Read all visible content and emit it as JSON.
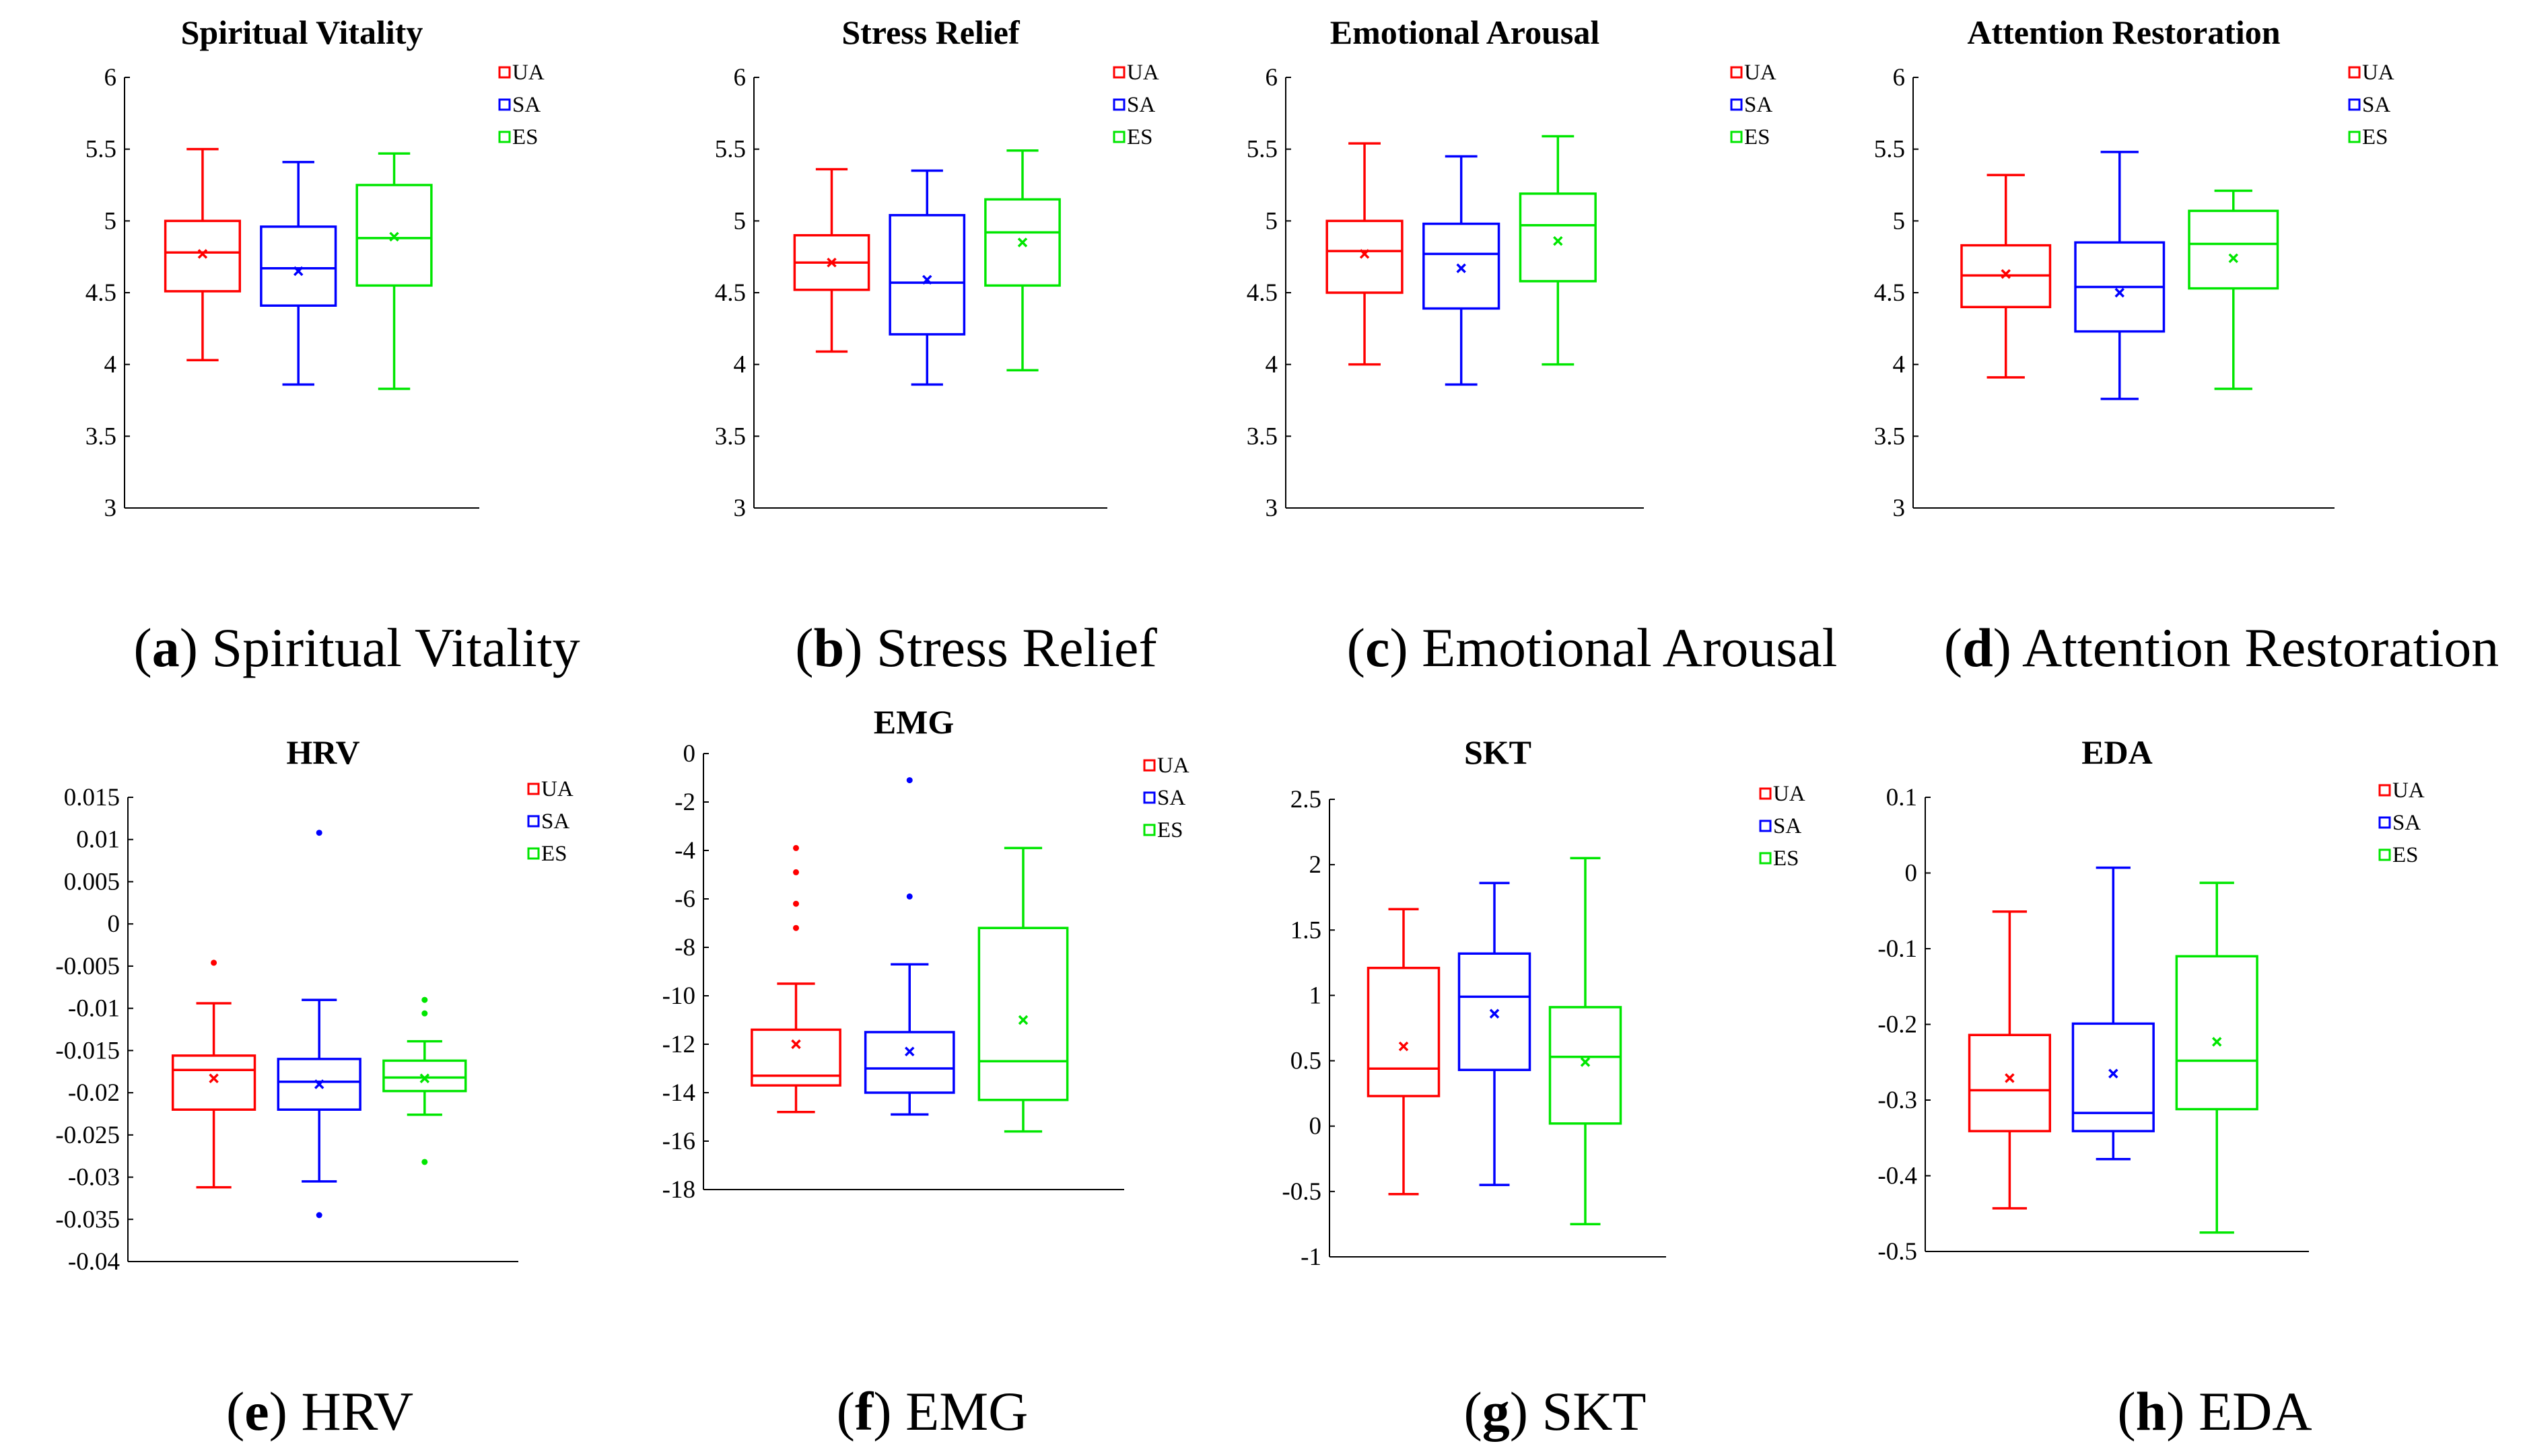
{
  "colors": {
    "UA": "#ff0000",
    "SA": "#0000ff",
    "ES": "#00e600"
  },
  "chart_data": [
    {
      "type": "boxplot",
      "title": "Spiritual Vitality",
      "caption_letter": "a",
      "caption_text": "Spiritual Vitality",
      "ylim": [
        3,
        6
      ],
      "yticks": [
        "3",
        "3.5",
        "4",
        "4.5",
        "5",
        "5.5",
        "6"
      ],
      "legend": [
        "UA",
        "SA",
        "ES"
      ],
      "legend_position": "top-right",
      "series": [
        {
          "name": "UA",
          "whisker_low": 4.03,
          "q1": 4.51,
          "median": 4.78,
          "q3": 5.0,
          "whisker_high": 5.5,
          "mean": 4.77,
          "outliers": []
        },
        {
          "name": "SA",
          "whisker_low": 3.86,
          "q1": 4.41,
          "median": 4.67,
          "q3": 4.96,
          "whisker_high": 5.41,
          "mean": 4.65,
          "outliers": []
        },
        {
          "name": "ES",
          "whisker_low": 3.83,
          "q1": 4.55,
          "median": 4.88,
          "q3": 5.25,
          "whisker_high": 5.47,
          "mean": 4.89,
          "outliers": []
        }
      ]
    },
    {
      "type": "boxplot",
      "title": "Stress Relief",
      "caption_letter": "b",
      "caption_text": "Stress Relief",
      "ylim": [
        3,
        6
      ],
      "yticks": [
        "3",
        "3.5",
        "4",
        "4.5",
        "5",
        "5.5",
        "6"
      ],
      "legend": [
        "UA",
        "SA",
        "ES"
      ],
      "legend_position": "top-right",
      "series": [
        {
          "name": "UA",
          "whisker_low": 4.09,
          "q1": 4.52,
          "median": 4.71,
          "q3": 4.9,
          "whisker_high": 5.36,
          "mean": 4.71,
          "outliers": []
        },
        {
          "name": "SA",
          "whisker_low": 3.86,
          "q1": 4.21,
          "median": 4.57,
          "q3": 5.04,
          "whisker_high": 5.35,
          "mean": 4.59,
          "outliers": []
        },
        {
          "name": "ES",
          "whisker_low": 3.96,
          "q1": 4.55,
          "median": 4.92,
          "q3": 5.15,
          "whisker_high": 5.49,
          "mean": 4.85,
          "outliers": []
        }
      ]
    },
    {
      "type": "boxplot",
      "title": "Emotional Arousal",
      "caption_letter": "c",
      "caption_text": "Emotional Arousal",
      "ylim": [
        3,
        6
      ],
      "yticks": [
        "3",
        "3.5",
        "4",
        "4.5",
        "5",
        "5.5",
        "6"
      ],
      "legend": [
        "UA",
        "SA",
        "ES"
      ],
      "legend_position": "top-right",
      "series": [
        {
          "name": "UA",
          "whisker_low": 4.0,
          "q1": 4.5,
          "median": 4.79,
          "q3": 5.0,
          "whisker_high": 5.54,
          "mean": 4.77,
          "outliers": []
        },
        {
          "name": "SA",
          "whisker_low": 3.86,
          "q1": 4.39,
          "median": 4.77,
          "q3": 4.98,
          "whisker_high": 5.45,
          "mean": 4.67,
          "outliers": []
        },
        {
          "name": "ES",
          "whisker_low": 4.0,
          "q1": 4.58,
          "median": 4.97,
          "q3": 5.19,
          "whisker_high": 5.59,
          "mean": 4.86,
          "outliers": []
        }
      ]
    },
    {
      "type": "boxplot",
      "title": "Attention Restoration",
      "caption_letter": "d",
      "caption_text": "Attention Restoration",
      "ylim": [
        3,
        6
      ],
      "yticks": [
        "3",
        "3.5",
        "4",
        "4.5",
        "5",
        "5.5",
        "6"
      ],
      "legend": [
        "UA",
        "SA",
        "ES"
      ],
      "legend_position": "top-right",
      "series": [
        {
          "name": "UA",
          "whisker_low": 3.91,
          "q1": 4.4,
          "median": 4.62,
          "q3": 4.83,
          "whisker_high": 5.32,
          "mean": 4.63,
          "outliers": []
        },
        {
          "name": "SA",
          "whisker_low": 3.76,
          "q1": 4.23,
          "median": 4.54,
          "q3": 4.85,
          "whisker_high": 5.48,
          "mean": 4.5,
          "outliers": []
        },
        {
          "name": "ES",
          "whisker_low": 3.83,
          "q1": 4.53,
          "median": 4.84,
          "q3": 5.07,
          "whisker_high": 5.21,
          "mean": 4.74,
          "outliers": []
        }
      ]
    },
    {
      "type": "boxplot",
      "title": "HRV",
      "caption_letter": "e",
      "caption_text": "HRV",
      "ylim": [
        -0.04,
        0.015
      ],
      "yticks": [
        "-0.04",
        "-0.035",
        "-0.03",
        "-0.025",
        "-0.02",
        "-0.015",
        "-0.01",
        "-0.005",
        "0",
        "0.005",
        "0.01",
        "0.015"
      ],
      "legend": [
        "UA",
        "SA",
        "ES"
      ],
      "legend_position": "top-right",
      "series": [
        {
          "name": "UA",
          "whisker_low": -0.0312,
          "q1": -0.022,
          "median": -0.0173,
          "q3": -0.0156,
          "whisker_high": -0.0094,
          "mean": -0.0183,
          "outliers": [
            -0.0046
          ]
        },
        {
          "name": "SA",
          "whisker_low": -0.0305,
          "q1": -0.022,
          "median": -0.0187,
          "q3": -0.016,
          "whisker_high": -0.009,
          "mean": -0.019,
          "outliers": [
            0.0108,
            -0.0345
          ]
        },
        {
          "name": "ES",
          "whisker_low": -0.0226,
          "q1": -0.0198,
          "median": -0.0182,
          "q3": -0.0162,
          "whisker_high": -0.0139,
          "mean": -0.0183,
          "outliers": [
            -0.009,
            -0.0106,
            -0.0282
          ]
        }
      ]
    },
    {
      "type": "boxplot",
      "title": "EMG",
      "caption_letter": "f",
      "caption_text": "EMG",
      "ylim": [
        -18,
        0
      ],
      "yticks": [
        "-18",
        "-16",
        "-14",
        "-12",
        "-10",
        "-8",
        "-6",
        "-4",
        "-2",
        "0"
      ],
      "legend": [
        "UA",
        "SA",
        "ES"
      ],
      "legend_position": "top-right",
      "series": [
        {
          "name": "UA",
          "whisker_low": -14.8,
          "q1": -13.7,
          "median": -13.3,
          "q3": -11.4,
          "whisker_high": -9.5,
          "mean": -12.0,
          "outliers": [
            -3.9,
            -4.9,
            -6.2,
            -7.2
          ]
        },
        {
          "name": "SA",
          "whisker_low": -14.9,
          "q1": -14.0,
          "median": -13.0,
          "q3": -11.5,
          "whisker_high": -8.7,
          "mean": -12.3,
          "outliers": [
            -1.1,
            -5.9
          ]
        },
        {
          "name": "ES",
          "whisker_low": -15.6,
          "q1": -14.3,
          "median": -12.7,
          "q3": -7.2,
          "whisker_high": -3.9,
          "mean": -11.0,
          "outliers": []
        }
      ]
    },
    {
      "type": "boxplot",
      "title": "SKT",
      "caption_letter": "g",
      "caption_text": "SKT",
      "ylim": [
        -1,
        2.5
      ],
      "yticks": [
        "-1",
        "-0.5",
        "0",
        "0.5",
        "1",
        "1.5",
        "2",
        "2.5"
      ],
      "legend": [
        "UA",
        "SA",
        "ES"
      ],
      "legend_position": "top-right",
      "series": [
        {
          "name": "UA",
          "whisker_low": -0.52,
          "q1": 0.23,
          "median": 0.44,
          "q3": 1.21,
          "whisker_high": 1.66,
          "mean": 0.61,
          "outliers": []
        },
        {
          "name": "SA",
          "whisker_low": -0.45,
          "q1": 0.43,
          "median": 0.99,
          "q3": 1.32,
          "whisker_high": 1.86,
          "mean": 0.86,
          "outliers": []
        },
        {
          "name": "ES",
          "whisker_low": -0.75,
          "q1": 0.02,
          "median": 0.53,
          "q3": 0.91,
          "whisker_high": 2.05,
          "mean": 0.49,
          "outliers": []
        }
      ]
    },
    {
      "type": "boxplot",
      "title": "EDA",
      "caption_letter": "h",
      "caption_text": "EDA",
      "ylim": [
        -0.5,
        0.1
      ],
      "yticks": [
        "-0.5",
        "-0.4",
        "-0.3",
        "-0.2",
        "-0.1",
        "0",
        "0.1"
      ],
      "legend": [
        "UA",
        "SA",
        "ES"
      ],
      "legend_position": "top-right",
      "series": [
        {
          "name": "UA",
          "whisker_low": -0.443,
          "q1": -0.341,
          "median": -0.287,
          "q3": -0.214,
          "whisker_high": -0.051,
          "mean": -0.271,
          "outliers": []
        },
        {
          "name": "SA",
          "whisker_low": -0.378,
          "q1": -0.341,
          "median": -0.317,
          "q3": -0.199,
          "whisker_high": 0.007,
          "mean": -0.265,
          "outliers": []
        },
        {
          "name": "ES",
          "whisker_low": -0.475,
          "q1": -0.312,
          "median": -0.248,
          "q3": -0.11,
          "whisker_high": -0.013,
          "mean": -0.223,
          "outliers": []
        }
      ]
    }
  ]
}
